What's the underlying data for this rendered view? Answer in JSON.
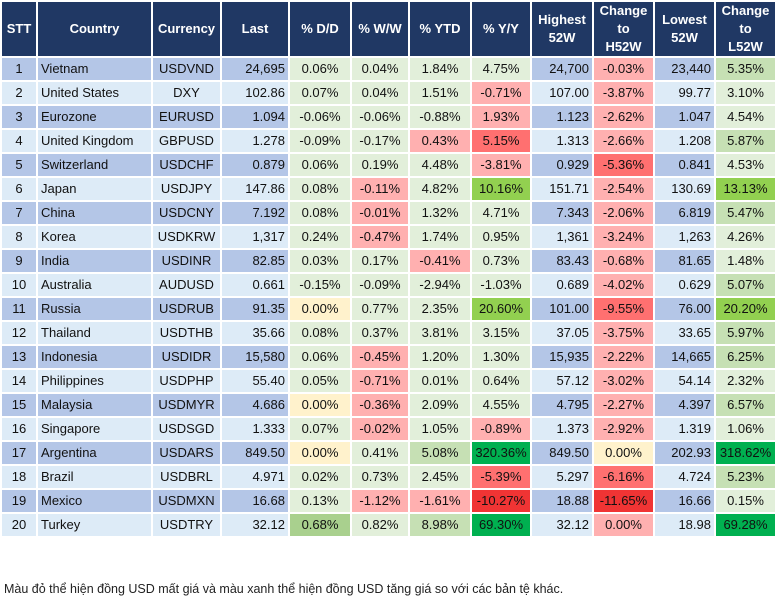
{
  "palette": {
    "odd_row": "#b4c6e7",
    "even_row": "#ddebf7",
    "header": "#203864",
    "g1": "#e2efda",
    "g2": "#c6e0b4",
    "g3": "#92d050",
    "g4": "#00b050",
    "g5": "#a9d08e",
    "r1": "#ffb0b0",
    "r2": "#ff7070",
    "r3": "#f03434",
    "y": "#fff2cc"
  },
  "headers": [
    "STT",
    "Country",
    "Currency",
    "Last",
    "% D/D",
    "% W/W",
    "% YTD",
    "% Y/Y",
    "Highest\n52W",
    "Change\nto\nH52W",
    "Lowest\n52W",
    "Change\nto\nL52W"
  ],
  "rows": [
    {
      "cells": [
        "1",
        "Vietnam",
        "USDVND",
        "24,695",
        "0.06%",
        "0.04%",
        "1.84%",
        "4.75%",
        "24,700",
        "-0.03%",
        "23,440",
        "5.35%"
      ],
      "colors": [
        "g1",
        "g1",
        "g1",
        "g1",
        "r1",
        "g2"
      ]
    },
    {
      "cells": [
        "2",
        "United States",
        "DXY",
        "102.86",
        "0.07%",
        "0.04%",
        "1.51%",
        "-0.71%",
        "107.00",
        "-3.87%",
        "99.77",
        "3.10%"
      ],
      "colors": [
        "g1",
        "g1",
        "g1",
        "r1",
        "r1",
        "g1"
      ]
    },
    {
      "cells": [
        "3",
        "Eurozone",
        "EURUSD",
        "1.094",
        "-0.06%",
        "-0.06%",
        "-0.88%",
        "1.93%",
        "1.123",
        "-2.62%",
        "1.047",
        "4.54%"
      ],
      "colors": [
        "g1",
        "g1",
        "g1",
        "r1",
        "r1",
        "g1"
      ]
    },
    {
      "cells": [
        "4",
        "United Kingdom",
        "GBPUSD",
        "1.278",
        "-0.09%",
        "-0.17%",
        "0.43%",
        "5.15%",
        "1.313",
        "-2.66%",
        "1.208",
        "5.87%"
      ],
      "colors": [
        "g1",
        "g1",
        "r1",
        "r2",
        "r1",
        "g2"
      ]
    },
    {
      "cells": [
        "5",
        "Switzerland",
        "USDCHF",
        "0.879",
        "0.06%",
        "0.19%",
        "4.48%",
        "-3.81%",
        "0.929",
        "-5.36%",
        "0.841",
        "4.53%"
      ],
      "colors": [
        "g1",
        "g1",
        "g1",
        "r1",
        "r2",
        "g1"
      ]
    },
    {
      "cells": [
        "6",
        "Japan",
        "USDJPY",
        "147.86",
        "0.08%",
        "-0.11%",
        "4.82%",
        "10.16%",
        "151.71",
        "-2.54%",
        "130.69",
        "13.13%"
      ],
      "colors": [
        "g1",
        "r1",
        "g1",
        "g3",
        "r1",
        "g3"
      ]
    },
    {
      "cells": [
        "7",
        "China",
        "USDCNY",
        "7.192",
        "0.08%",
        "-0.01%",
        "1.32%",
        "4.71%",
        "7.343",
        "-2.06%",
        "6.819",
        "5.47%"
      ],
      "colors": [
        "g1",
        "r1",
        "g1",
        "g1",
        "r1",
        "g2"
      ]
    },
    {
      "cells": [
        "8",
        "Korea",
        "USDKRW",
        "1,317",
        "0.24%",
        "-0.47%",
        "1.74%",
        "0.95%",
        "1,361",
        "-3.24%",
        "1,263",
        "4.26%"
      ],
      "colors": [
        "g1",
        "r1",
        "g1",
        "g1",
        "r1",
        "g1"
      ]
    },
    {
      "cells": [
        "9",
        "India",
        "USDINR",
        "82.85",
        "0.03%",
        "0.17%",
        "-0.41%",
        "0.73%",
        "83.43",
        "-0.68%",
        "81.65",
        "1.48%"
      ],
      "colors": [
        "g1",
        "g1",
        "r1",
        "g1",
        "r1",
        "g1"
      ]
    },
    {
      "cells": [
        "10",
        "Australia",
        "AUDUSD",
        "0.661",
        "-0.15%",
        "-0.09%",
        "-2.94%",
        "-1.03%",
        "0.689",
        "-4.02%",
        "0.629",
        "5.07%"
      ],
      "colors": [
        "g1",
        "g1",
        "g1",
        "g1",
        "r1",
        "g2"
      ]
    },
    {
      "cells": [
        "11",
        "Russia",
        "USDRUB",
        "91.35",
        "0.00%",
        "0.77%",
        "2.35%",
        "20.60%",
        "101.00",
        "-9.55%",
        "76.00",
        "20.20%"
      ],
      "colors": [
        "y",
        "g1",
        "g1",
        "g3",
        "r2",
        "g3"
      ]
    },
    {
      "cells": [
        "12",
        "Thailand",
        "USDTHB",
        "35.66",
        "0.08%",
        "0.37%",
        "3.81%",
        "3.15%",
        "37.05",
        "-3.75%",
        "33.65",
        "5.97%"
      ],
      "colors": [
        "g1",
        "g1",
        "g1",
        "g1",
        "r1",
        "g2"
      ]
    },
    {
      "cells": [
        "13",
        "Indonesia",
        "USDIDR",
        "15,580",
        "0.06%",
        "-0.45%",
        "1.20%",
        "1.30%",
        "15,935",
        "-2.22%",
        "14,665",
        "6.25%"
      ],
      "colors": [
        "g1",
        "r1",
        "g1",
        "g1",
        "r1",
        "g2"
      ]
    },
    {
      "cells": [
        "14",
        "Philippines",
        "USDPHP",
        "55.40",
        "0.05%",
        "-0.71%",
        "0.01%",
        "0.64%",
        "57.12",
        "-3.02%",
        "54.14",
        "2.32%"
      ],
      "colors": [
        "g1",
        "r1",
        "g1",
        "g1",
        "r1",
        "g1"
      ]
    },
    {
      "cells": [
        "15",
        "Malaysia",
        "USDMYR",
        "4.686",
        "0.00%",
        "-0.36%",
        "2.09%",
        "4.55%",
        "4.795",
        "-2.27%",
        "4.397",
        "6.57%"
      ],
      "colors": [
        "y",
        "r1",
        "g1",
        "g1",
        "r1",
        "g2"
      ]
    },
    {
      "cells": [
        "16",
        "Singapore",
        "USDSGD",
        "1.333",
        "0.07%",
        "-0.02%",
        "1.05%",
        "-0.89%",
        "1.373",
        "-2.92%",
        "1.319",
        "1.06%"
      ],
      "colors": [
        "g1",
        "r1",
        "g1",
        "r1",
        "r1",
        "g1"
      ]
    },
    {
      "cells": [
        "17",
        "Argentina",
        "USDARS",
        "849.50",
        "0.00%",
        "0.41%",
        "5.08%",
        "320.36%",
        "849.50",
        "0.00%",
        "202.93",
        "318.62%"
      ],
      "colors": [
        "y",
        "g1",
        "g2",
        "g4",
        "y",
        "g4"
      ]
    },
    {
      "cells": [
        "18",
        "Brazil",
        "USDBRL",
        "4.971",
        "0.02%",
        "0.73%",
        "2.45%",
        "-5.39%",
        "5.297",
        "-6.16%",
        "4.724",
        "5.23%"
      ],
      "colors": [
        "g1",
        "g1",
        "g1",
        "r2",
        "r2",
        "g2"
      ]
    },
    {
      "cells": [
        "19",
        "Mexico",
        "USDMXN",
        "16.68",
        "0.13%",
        "-1.12%",
        "-1.61%",
        "-10.27%",
        "18.88",
        "-11.65%",
        "16.66",
        "0.15%"
      ],
      "colors": [
        "g1",
        "r1",
        "r1",
        "r3",
        "r3",
        "g1"
      ]
    },
    {
      "cells": [
        "20",
        "Turkey",
        "USDTRY",
        "32.12",
        "0.68%",
        "0.82%",
        "8.98%",
        "69.30%",
        "32.12",
        "0.00%",
        "18.98",
        "69.28%"
      ],
      "colors": [
        "g5",
        "g1",
        "g2",
        "g4",
        "r1",
        "g4"
      ]
    }
  ],
  "footer": "Màu đỏ thể hiện đồng USD mất giá và màu xanh thể hiện đồng USD tăng giá so với các bản tệ khác."
}
